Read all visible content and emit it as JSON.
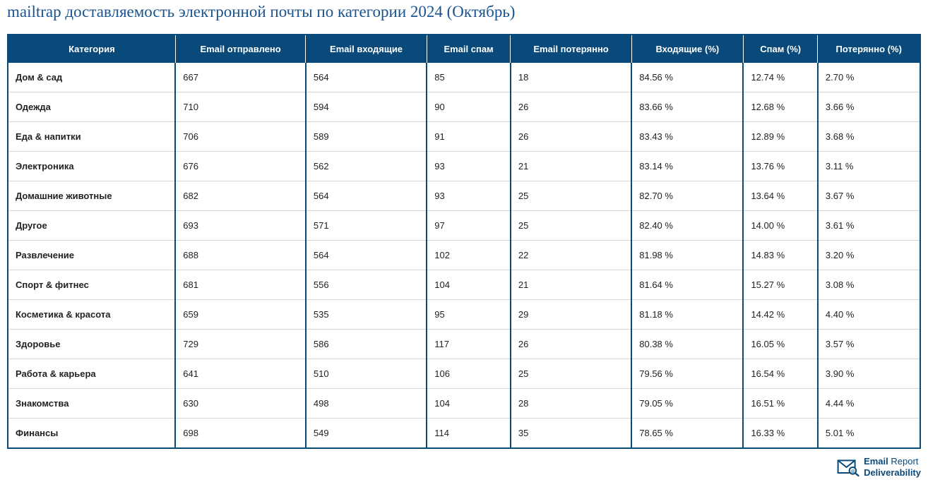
{
  "title": "mailtrap доставляемость электронной почты по категории 2024 (Октябрь)",
  "headers": [
    "Категория",
    "Email отправлено",
    "Email входящие",
    "Email спам",
    "Email потерянно",
    "Входящие (%)",
    "Спам (%)",
    "Потерянно (%)"
  ],
  "rows": [
    [
      "Дом & сад",
      "667",
      "564",
      "85",
      "18",
      "84.56 %",
      "12.74 %",
      "2.70 %"
    ],
    [
      "Одежда",
      "710",
      "594",
      "90",
      "26",
      "83.66 %",
      "12.68 %",
      "3.66 %"
    ],
    [
      "Еда & напитки",
      "706",
      "589",
      "91",
      "26",
      "83.43 %",
      "12.89 %",
      "3.68 %"
    ],
    [
      "Электроника",
      "676",
      "562",
      "93",
      "21",
      "83.14 %",
      "13.76 %",
      "3.11 %"
    ],
    [
      "Домашние животные",
      "682",
      "564",
      "93",
      "25",
      "82.70 %",
      "13.64 %",
      "3.67 %"
    ],
    [
      "Другое",
      "693",
      "571",
      "97",
      "25",
      "82.40 %",
      "14.00 %",
      "3.61 %"
    ],
    [
      "Развлечение",
      "688",
      "564",
      "102",
      "22",
      "81.98 %",
      "14.83 %",
      "3.20 %"
    ],
    [
      "Спорт & фитнес",
      "681",
      "556",
      "104",
      "21",
      "81.64 %",
      "15.27 %",
      "3.08 %"
    ],
    [
      "Косметика & красота",
      "659",
      "535",
      "95",
      "29",
      "81.18 %",
      "14.42 %",
      "4.40 %"
    ],
    [
      "Здоровье",
      "729",
      "586",
      "117",
      "26",
      "80.38 %",
      "16.05 %",
      "3.57 %"
    ],
    [
      "Работа & карьера",
      "641",
      "510",
      "106",
      "25",
      "79.56 %",
      "16.54 %",
      "3.90 %"
    ],
    [
      "Знакомства",
      "630",
      "498",
      "104",
      "28",
      "79.05 %",
      "16.51 %",
      "4.44 %"
    ],
    [
      "Финансы",
      "698",
      "549",
      "114",
      "35",
      "78.65 %",
      "16.33 %",
      "5.01 %"
    ]
  ],
  "logo": {
    "line1_normal": "Email ",
    "line1_light": "Report",
    "line2": "Deliverability"
  },
  "colors": {
    "header_bg": "#0a4a7a",
    "header_text": "#ffffff",
    "title_color": "#1a5490",
    "border_color": "#0a4a7a",
    "row_border": "#d8d8d8",
    "text_color": "#222222"
  }
}
